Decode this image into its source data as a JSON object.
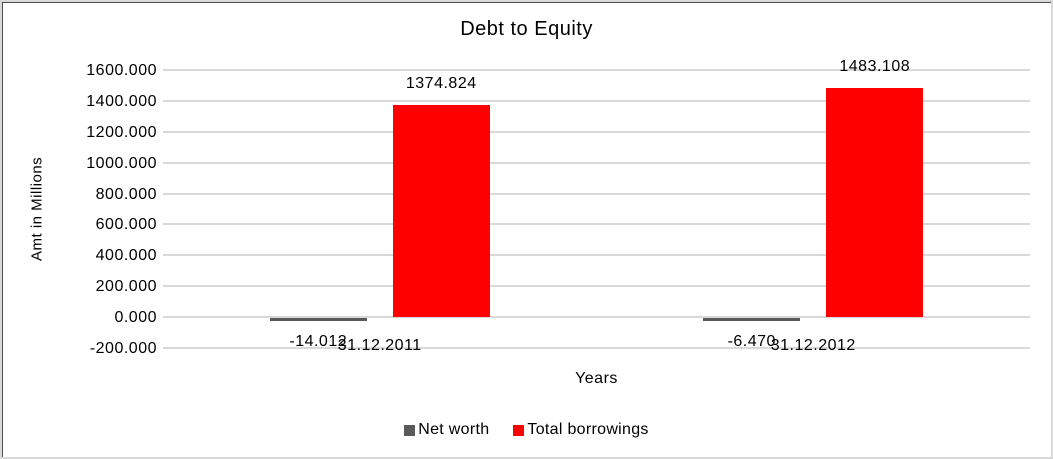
{
  "chart_data": {
    "type": "bar",
    "title": "Debt to Equity",
    "xlabel": "Years",
    "ylabel": "Amt in Millions",
    "categories": [
      "31.12.2011",
      "31.12.2012"
    ],
    "series": [
      {
        "name": "Net worth",
        "color": "#595959",
        "values": [
          -14.012,
          -6.47
        ],
        "labels": [
          "-14.012",
          "-6.470"
        ]
      },
      {
        "name": "Total borrowings",
        "color": "#ff0000",
        "values": [
          1374.824,
          1483.108
        ],
        "labels": [
          "1374.824",
          "1483.108"
        ]
      }
    ],
    "ylim": [
      -200,
      1600
    ],
    "ytick_step": 200,
    "ytick_labels": [
      "1600.000",
      "1400.000",
      "1200.000",
      "1000.000",
      "800.000",
      "600.000",
      "400.000",
      "200.000",
      "0.000",
      "-200.000"
    ],
    "grid": true,
    "gridline_color": "#d9d9d9",
    "legend_position": "bottom"
  }
}
